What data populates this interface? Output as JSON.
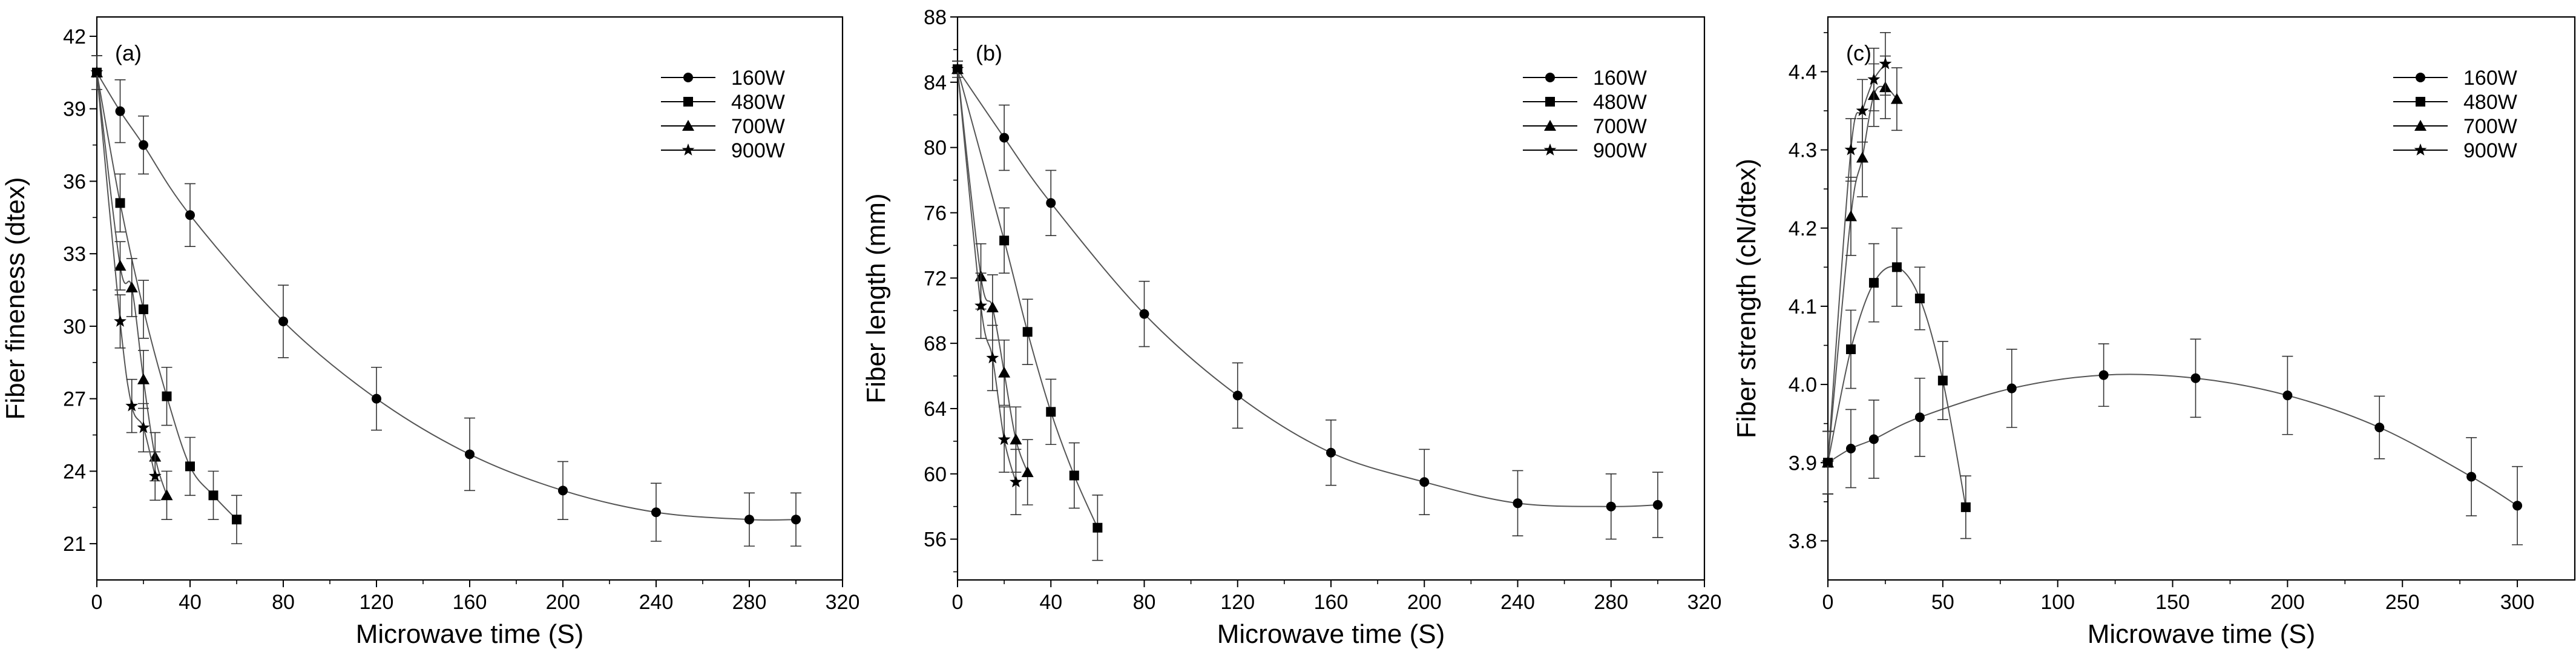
{
  "chart_data": [
    {
      "type": "line",
      "panel_label": "(a)",
      "xlabel": "Microwave time (S)",
      "ylabel": "Fiber fineness (dtex)",
      "xlim": [
        0,
        320
      ],
      "ylim": [
        19.5,
        42.8
      ],
      "xticks": [
        0,
        40,
        80,
        120,
        160,
        200,
        240,
        280,
        320
      ],
      "yticks": [
        21,
        24,
        27,
        30,
        33,
        36,
        39,
        42
      ],
      "legend_position": "top-right",
      "series": [
        {
          "name": "160W",
          "marker": "circle",
          "x": [
            0,
            10,
            20,
            40,
            80,
            120,
            160,
            200,
            240,
            280,
            300
          ],
          "y": [
            40.5,
            38.9,
            37.5,
            34.6,
            30.2,
            27.0,
            24.7,
            23.2,
            22.3,
            22.0,
            22.0
          ],
          "err": [
            0.7,
            1.3,
            1.2,
            1.3,
            1.5,
            1.3,
            1.5,
            1.2,
            1.2,
            1.1,
            1.1
          ]
        },
        {
          "name": "480W",
          "marker": "square",
          "x": [
            0,
            10,
            20,
            30,
            40,
            50,
            60
          ],
          "y": [
            40.5,
            35.1,
            30.7,
            27.1,
            24.2,
            23.0,
            22.0
          ],
          "err": [
            0.7,
            1.2,
            1.2,
            1.2,
            1.2,
            1.0,
            1.0
          ]
        },
        {
          "name": "700W",
          "marker": "triangle",
          "x": [
            0,
            10,
            15,
            20,
            25,
            30
          ],
          "y": [
            40.5,
            32.5,
            31.6,
            27.8,
            24.6,
            23.0
          ],
          "err": [
            0.7,
            1.0,
            1.2,
            1.2,
            1.0,
            1.0
          ]
        },
        {
          "name": "900W",
          "marker": "star",
          "x": [
            0,
            10,
            15,
            20,
            25
          ],
          "y": [
            40.5,
            30.2,
            26.7,
            25.8,
            23.8
          ],
          "err": [
            0.7,
            1.1,
            1.1,
            1.0,
            1.0
          ]
        }
      ]
    },
    {
      "type": "line",
      "panel_label": "(b)",
      "xlabel": "Microwave time (S)",
      "ylabel": "Fiber length (mm)",
      "xlim": [
        0,
        320
      ],
      "ylim": [
        53.5,
        88
      ],
      "xticks": [
        0,
        40,
        80,
        120,
        160,
        200,
        240,
        280,
        320
      ],
      "yticks": [
        56,
        60,
        64,
        68,
        72,
        76,
        80,
        84,
        88
      ],
      "legend_position": "top-right",
      "series": [
        {
          "name": "160W",
          "marker": "circle",
          "x": [
            0,
            20,
            40,
            80,
            120,
            160,
            200,
            240,
            280,
            300
          ],
          "y": [
            84.8,
            80.6,
            76.6,
            69.8,
            64.8,
            61.3,
            59.5,
            58.2,
            58.0,
            58.1
          ],
          "err": [
            0.5,
            2.0,
            2.0,
            2.0,
            2.0,
            2.0,
            2.0,
            2.0,
            2.0,
            2.0
          ]
        },
        {
          "name": "480W",
          "marker": "square",
          "x": [
            0,
            20,
            30,
            40,
            50,
            60
          ],
          "y": [
            84.8,
            74.3,
            68.7,
            63.8,
            59.9,
            56.7
          ],
          "err": [
            0.5,
            2.0,
            2.0,
            2.0,
            2.0,
            2.0
          ]
        },
        {
          "name": "700W",
          "marker": "triangle",
          "x": [
            0,
            10,
            15,
            20,
            25,
            30
          ],
          "y": [
            84.8,
            72.1,
            70.2,
            66.2,
            62.1,
            60.1
          ],
          "err": [
            0.5,
            2.0,
            2.0,
            2.0,
            2.0,
            2.0
          ]
        },
        {
          "name": "900W",
          "marker": "star",
          "x": [
            0,
            10,
            15,
            20,
            25
          ],
          "y": [
            84.8,
            70.3,
            67.1,
            62.1,
            59.5
          ],
          "err": [
            0.5,
            2.0,
            2.0,
            2.0,
            2.0
          ]
        }
      ]
    },
    {
      "type": "line",
      "panel_label": "(c)",
      "xlabel": "Microwave time (S)",
      "ylabel": "Fiber strength (cN/dtex)",
      "xlim": [
        0,
        325
      ],
      "ylim": [
        3.75,
        4.47
      ],
      "xticks": [
        0,
        50,
        100,
        150,
        200,
        250,
        300
      ],
      "yticks": [
        3.8,
        3.9,
        4.0,
        4.1,
        4.2,
        4.3,
        4.4
      ],
      "legend_position": "top-right",
      "series": [
        {
          "name": "160W",
          "marker": "circle",
          "x": [
            0,
            10,
            20,
            40,
            80,
            120,
            160,
            200,
            240,
            280,
            300
          ],
          "y": [
            3.9,
            3.918,
            3.93,
            3.958,
            3.995,
            4.012,
            4.008,
            3.986,
            3.945,
            3.882,
            3.845
          ],
          "err": [
            0.04,
            0.05,
            0.05,
            0.05,
            0.05,
            0.04,
            0.05,
            0.05,
            0.04,
            0.05,
            0.05
          ]
        },
        {
          "name": "480W",
          "marker": "square",
          "x": [
            0,
            10,
            20,
            30,
            40,
            50,
            60
          ],
          "y": [
            3.9,
            4.045,
            4.13,
            4.15,
            4.11,
            4.005,
            3.843
          ],
          "err": [
            0.04,
            0.05,
            0.05,
            0.05,
            0.04,
            0.05,
            0.04
          ]
        },
        {
          "name": "700W",
          "marker": "triangle",
          "x": [
            0,
            10,
            15,
            20,
            25,
            30
          ],
          "y": [
            3.9,
            4.215,
            4.29,
            4.37,
            4.38,
            4.365
          ],
          "err": [
            0.04,
            0.05,
            0.05,
            0.04,
            0.04,
            0.04
          ]
        },
        {
          "name": "900W",
          "marker": "star",
          "x": [
            0,
            10,
            15,
            20,
            25
          ],
          "y": [
            3.9,
            4.3,
            4.35,
            4.39,
            4.41
          ],
          "err": [
            0.04,
            0.04,
            0.04,
            0.04,
            0.04
          ]
        }
      ]
    }
  ]
}
